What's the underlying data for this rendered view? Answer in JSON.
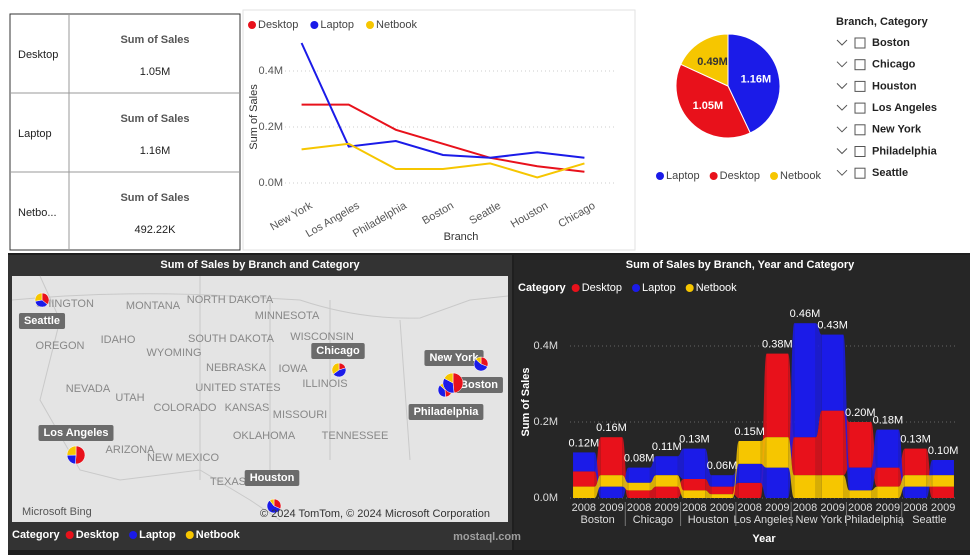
{
  "cards": {
    "rows": [
      {
        "label": "Desktop",
        "title": "Sum of Sales",
        "value": "1.05M"
      },
      {
        "label": "Laptop",
        "title": "Sum of Sales",
        "value": "1.16M"
      },
      {
        "label": "Netbo...",
        "title": "Sum of Sales",
        "value": "492.22K"
      }
    ]
  },
  "chart_data": [
    {
      "type": "line",
      "x_label": "Branch",
      "y_label": "Sum of Sales",
      "categories": [
        "New York",
        "Los Angeles",
        "Philadelphia",
        "Boston",
        "Seattle",
        "Houston",
        "Chicago"
      ],
      "series": [
        {
          "name": "Desktop",
          "color": "#e8111b",
          "values": [
            0.28,
            0.28,
            0.19,
            0.14,
            0.09,
            0.06,
            0.04
          ]
        },
        {
          "name": "Laptop",
          "color": "#1b1be8",
          "values": [
            0.5,
            0.13,
            0.15,
            0.1,
            0.09,
            0.11,
            0.09
          ]
        },
        {
          "name": "Netbook",
          "color": "#f6c600",
          "values": [
            0.12,
            0.14,
            0.05,
            0.05,
            0.07,
            0.02,
            0.07
          ]
        }
      ],
      "ylim": [
        0,
        0.5
      ],
      "yticks": [
        {
          "value": 0,
          "label": "0.0M"
        },
        {
          "value": 0.2,
          "label": "0.2M"
        },
        {
          "value": 0.4,
          "label": "0.4M"
        }
      ],
      "grid": true
    },
    {
      "type": "pie",
      "categories": [
        "Laptop",
        "Desktop",
        "Netbook"
      ],
      "values": [
        1.16,
        1.05,
        0.49
      ],
      "value_labels": [
        "1.16M",
        "1.05M",
        "0.49M"
      ],
      "colors": [
        "#1b1be8",
        "#e8111b",
        "#f6c600"
      ]
    },
    {
      "type": "ribbon",
      "title": "Sum of Sales by Branch, Year and Category",
      "legend_title": "Category",
      "x_label": "Year",
      "y_label": "Sum of Sales",
      "categories": [
        "2008",
        "2009",
        "2008",
        "2009",
        "2008",
        "2009",
        "2008",
        "2009",
        "2008",
        "2009",
        "2008",
        "2009",
        "2008",
        "2009"
      ],
      "groups": [
        "Boston",
        "Chicago",
        "Houston",
        "Los Angeles",
        "New York",
        "Philadelphia",
        "Seattle"
      ],
      "series": [
        {
          "name": "Desktop",
          "color": "#e8111b",
          "values": [
            0.04,
            0.1,
            0.02,
            0.03,
            0.03,
            0.02,
            0.04,
            0.22,
            0.1,
            0.17,
            0.12,
            0.05,
            0.07,
            0.03
          ]
        },
        {
          "name": "Laptop",
          "color": "#1b1be8",
          "values": [
            0.05,
            0.03,
            0.04,
            0.05,
            0.08,
            0.03,
            0.05,
            0.08,
            0.3,
            0.2,
            0.06,
            0.1,
            0.03,
            0.04
          ]
        },
        {
          "name": "Netbook",
          "color": "#f6c600",
          "values": [
            0.03,
            0.03,
            0.02,
            0.03,
            0.02,
            0.01,
            0.06,
            0.08,
            0.06,
            0.06,
            0.02,
            0.03,
            0.03,
            0.03
          ]
        }
      ],
      "totals": [
        0.12,
        0.16,
        0.08,
        0.11,
        0.13,
        0.06,
        0.15,
        0.38,
        0.46,
        0.43,
        0.2,
        0.18,
        0.13,
        0.1
      ],
      "total_labels": [
        "0.12M",
        "0.16M",
        "0.08M",
        "0.11M",
        "0.13M",
        "0.06M",
        "0.15M",
        "0.38M",
        "0.46M",
        "0.43M",
        "0.20M",
        "0.18M",
        "0.13M",
        "0.10M"
      ],
      "ylim": [
        0,
        0.5
      ],
      "yticks": [
        {
          "value": 0,
          "label": "0.0M"
        },
        {
          "value": 0.2,
          "label": "0.2M"
        },
        {
          "value": 0.4,
          "label": "0.4M"
        }
      ],
      "grid": true
    }
  ],
  "slicer": {
    "title": "Branch, Category",
    "items": [
      "Boston",
      "Chicago",
      "Houston",
      "Los Angeles",
      "New York",
      "Philadelphia",
      "Seattle"
    ]
  },
  "map": {
    "title": "Sum of Sales by Branch and Category",
    "legend_title": "Category",
    "region_labels": [
      "SHINGTON",
      "MONTANA",
      "NORTH DAKOTA",
      "MINNESOTA",
      "OREGON",
      "IDAHO",
      "SOUTH DAKOTA",
      "WISCONSIN",
      "WYOMING",
      "NEBRASKA",
      "IOWA",
      "NEVADA",
      "UNITED STATES",
      "UTAH",
      "COLORADO",
      "KANSAS",
      "ILLINOIS",
      "MISSOURI",
      "ARIZONA",
      "NEW MEXICO",
      "OKLAHOMA",
      "TENNESSEE",
      "TEXAS"
    ],
    "credits": [
      "Microsoft Bing",
      "© 2024 TomTom, © 2024 Microsoft Corporation"
    ]
  },
  "watermark": "mostaql.com"
}
